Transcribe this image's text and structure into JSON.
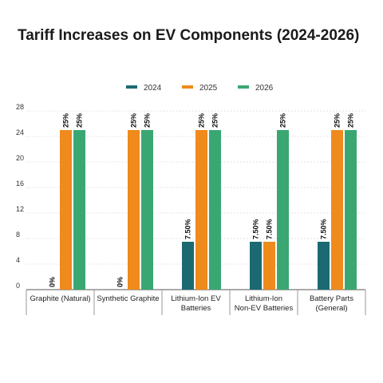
{
  "chart_data": {
    "type": "bar",
    "title": "Tariff Increases on EV Components (2024-2026)",
    "categories": [
      [
        "Graphite (Natural)"
      ],
      [
        "Synthetic Graphite"
      ],
      [
        "Lithium-Ion EV",
        "Batteries"
      ],
      [
        "Lithium-Ion",
        "Non-EV Batteries"
      ],
      [
        "Battery Parts",
        "(General)"
      ]
    ],
    "series": [
      {
        "name": "2024",
        "color": "#1b6a72",
        "values": [
          0,
          0,
          7.5,
          7.5,
          7.5
        ],
        "labels": [
          "0%",
          "0%",
          "7.50%",
          "7.50%",
          "7.50%"
        ]
      },
      {
        "name": "2025",
        "color": "#ef8a1c",
        "values": [
          25,
          25,
          25,
          7.5,
          25
        ],
        "labels": [
          "25%",
          "25%",
          "25%",
          "7.50%",
          "25%"
        ]
      },
      {
        "name": "2026",
        "color": "#3aa772",
        "values": [
          25,
          25,
          25,
          25,
          25
        ],
        "labels": [
          "25%",
          "25%",
          "25%",
          "25%",
          "25%"
        ]
      }
    ],
    "yticks": [
      0,
      4,
      8,
      12,
      16,
      20,
      24,
      28
    ],
    "ylim": [
      0,
      28
    ],
    "grid": true,
    "legend": "top-center"
  }
}
